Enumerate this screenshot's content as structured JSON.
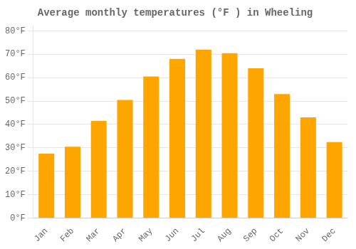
{
  "chart_data": {
    "type": "bar",
    "title": "Average monthly temperatures (°F ) in Wheeling",
    "categories": [
      "Jan",
      "Feb",
      "Mar",
      "Apr",
      "May",
      "Jun",
      "Jul",
      "Aug",
      "Sep",
      "Oct",
      "Nov",
      "Dec"
    ],
    "values": [
      27.5,
      30.5,
      41.5,
      50.5,
      60.5,
      68,
      72,
      70.5,
      64,
      53,
      43,
      32.5
    ],
    "color": "#FFA500",
    "ylim": [
      0,
      82
    ],
    "yticks": [
      {
        "value": 0,
        "label": "0°F"
      },
      {
        "value": 10,
        "label": "10°F"
      },
      {
        "value": 20,
        "label": "20°F"
      },
      {
        "value": 30,
        "label": "30°F"
      },
      {
        "value": 40,
        "label": "40°F"
      },
      {
        "value": 50,
        "label": "50°F"
      },
      {
        "value": 60,
        "label": "60°F"
      },
      {
        "value": 70,
        "label": "70°F"
      },
      {
        "value": 80,
        "label": "80°F"
      }
    ],
    "grid": true
  }
}
